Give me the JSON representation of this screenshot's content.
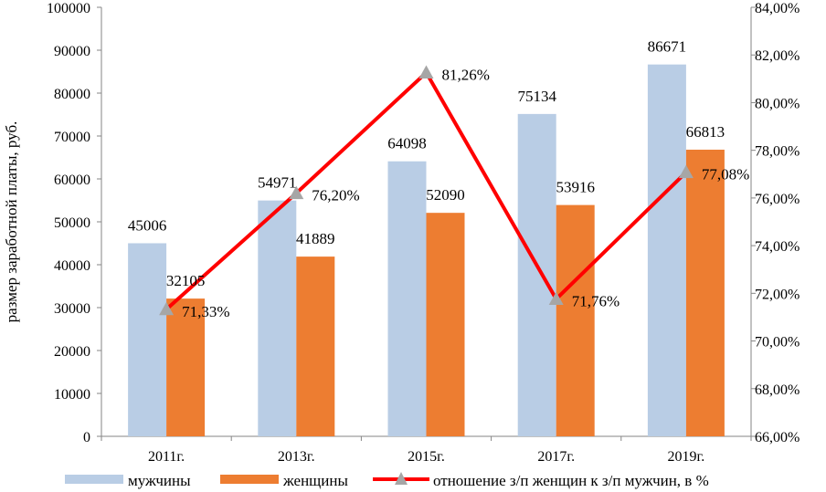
{
  "chart_data": {
    "type": "bar",
    "categories": [
      "2011г.",
      "2013г.",
      "2015г.",
      "2017г.",
      "2019г."
    ],
    "series": [
      {
        "name": "мужчины",
        "kind": "bar",
        "color": "#b9cde5",
        "values": [
          45006,
          54971,
          64098,
          75134,
          86671
        ],
        "labels": [
          "45006",
          "54971",
          "64098",
          "75134",
          "86671"
        ]
      },
      {
        "name": "женщины",
        "kind": "bar",
        "color": "#ed7d31",
        "values": [
          32105,
          41889,
          52090,
          53916,
          66813
        ],
        "labels": [
          "32105",
          "41889",
          "52090",
          "53916",
          "66813"
        ]
      },
      {
        "name": "отношение з/п женщин к з/п мужчин, в %",
        "kind": "line",
        "axis": "right",
        "color": "#ff0000",
        "marker_color": "#a6a6a6",
        "values": [
          71.33,
          76.2,
          81.26,
          71.76,
          77.08
        ],
        "labels": [
          "71,33%",
          "76,20%",
          "81,26%",
          "71,76%",
          "77,08%"
        ]
      }
    ],
    "ylabel": "размер заработной платы, руб.",
    "ylim": [
      0,
      100000
    ],
    "y_ticks": [
      "0",
      "10000",
      "20000",
      "30000",
      "40000",
      "50000",
      "60000",
      "70000",
      "80000",
      "90000",
      "100000"
    ],
    "y2lim": [
      66,
      84
    ],
    "y2_ticks": [
      "66,00%",
      "68,00%",
      "70,00%",
      "72,00%",
      "74,00%",
      "76,00%",
      "78,00%",
      "80,00%",
      "82,00%",
      "84,00%"
    ],
    "legend": "bottom"
  }
}
